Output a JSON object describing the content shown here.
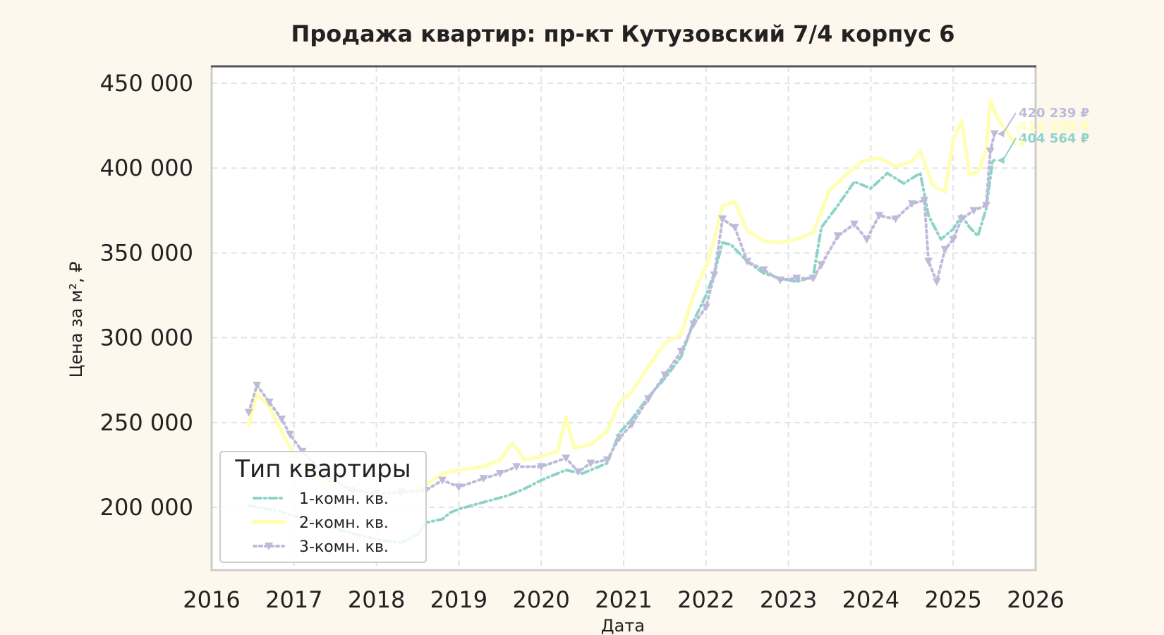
{
  "chart_data": {
    "type": "line",
    "title": "Продажа квартир: пр-кт Кутузовский 7/4 корпус 6",
    "xlabel": "Дата",
    "ylabel": "Цена за м², ₽",
    "xlim": [
      2016,
      2026
    ],
    "ylim": [
      163000,
      460000
    ],
    "x_ticks": [
      "2016",
      "2017",
      "2018",
      "2019",
      "2020",
      "2021",
      "2022",
      "2023",
      "2024",
      "2025",
      "2026"
    ],
    "y_ticks": [
      200000,
      250000,
      300000,
      350000,
      400000,
      450000
    ],
    "y_tick_labels": [
      "200 000",
      "250 000",
      "300 000",
      "350 000",
      "400 000",
      "450 000"
    ],
    "grid": true,
    "legend": {
      "title": "Тип квартиры",
      "position": "lower-left"
    },
    "series": [
      {
        "name": "1-комн. кв.",
        "color": "#8dd3c7",
        "style": "dashdot",
        "marker": "none",
        "end_label": "404 564 ₽",
        "points": [
          [
            2016.45,
            201000
          ],
          [
            2016.8,
            198000
          ],
          [
            2017.2,
            192000
          ],
          [
            2017.6,
            186000
          ],
          [
            2018.0,
            181000
          ],
          [
            2018.3,
            179000
          ],
          [
            2018.5,
            184000
          ],
          [
            2018.6,
            191000
          ],
          [
            2018.8,
            193000
          ],
          [
            2018.9,
            197000
          ],
          [
            2019.0,
            199000
          ],
          [
            2019.3,
            203000
          ],
          [
            2019.6,
            207000
          ],
          [
            2019.8,
            211000
          ],
          [
            2020.0,
            216000
          ],
          [
            2020.3,
            222000
          ],
          [
            2020.5,
            220000
          ],
          [
            2020.8,
            226000
          ],
          [
            2020.95,
            244000
          ],
          [
            2021.1,
            252000
          ],
          [
            2021.3,
            265000
          ],
          [
            2021.5,
            276000
          ],
          [
            2021.7,
            289000
          ],
          [
            2021.85,
            310000
          ],
          [
            2022.0,
            325000
          ],
          [
            2022.1,
            338000
          ],
          [
            2022.2,
            356000
          ],
          [
            2022.3,
            355000
          ],
          [
            2022.5,
            345000
          ],
          [
            2022.7,
            338000
          ],
          [
            2022.9,
            335000
          ],
          [
            2023.1,
            333000
          ],
          [
            2023.3,
            336000
          ],
          [
            2023.4,
            365000
          ],
          [
            2023.6,
            378000
          ],
          [
            2023.8,
            392000
          ],
          [
            2024.0,
            388000
          ],
          [
            2024.2,
            397000
          ],
          [
            2024.4,
            391000
          ],
          [
            2024.6,
            397000
          ],
          [
            2024.7,
            372000
          ],
          [
            2024.85,
            358000
          ],
          [
            2025.0,
            364000
          ],
          [
            2025.1,
            372000
          ],
          [
            2025.2,
            365000
          ],
          [
            2025.3,
            360000
          ],
          [
            2025.4,
            376000
          ],
          [
            2025.48,
            405000
          ],
          [
            2025.5,
            404564
          ]
        ]
      },
      {
        "name": "2-комн. кв.",
        "color": "#ffffb3",
        "style": "solid",
        "marker": "none",
        "end_label": "414 258 ₽",
        "points": [
          [
            2016.45,
            248000
          ],
          [
            2016.55,
            267000
          ],
          [
            2016.7,
            259000
          ],
          [
            2016.9,
            240000
          ],
          [
            2017.0,
            231000
          ],
          [
            2017.2,
            220000
          ],
          [
            2017.5,
            212000
          ],
          [
            2017.8,
            208000
          ],
          [
            2018.0,
            206000
          ],
          [
            2018.3,
            208000
          ],
          [
            2018.6,
            213000
          ],
          [
            2018.8,
            220000
          ],
          [
            2019.0,
            222000
          ],
          [
            2019.3,
            224000
          ],
          [
            2019.5,
            228000
          ],
          [
            2019.65,
            238000
          ],
          [
            2019.8,
            228000
          ],
          [
            2020.0,
            230000
          ],
          [
            2020.2,
            233000
          ],
          [
            2020.3,
            253000
          ],
          [
            2020.4,
            235000
          ],
          [
            2020.6,
            237000
          ],
          [
            2020.8,
            245000
          ],
          [
            2020.95,
            262000
          ],
          [
            2021.1,
            268000
          ],
          [
            2021.3,
            283000
          ],
          [
            2021.5,
            297000
          ],
          [
            2021.7,
            302000
          ],
          [
            2021.8,
            318000
          ],
          [
            2021.9,
            332000
          ],
          [
            2022.0,
            342000
          ],
          [
            2022.1,
            358000
          ],
          [
            2022.2,
            378000
          ],
          [
            2022.35,
            380000
          ],
          [
            2022.5,
            363000
          ],
          [
            2022.7,
            357000
          ],
          [
            2022.9,
            356000
          ],
          [
            2023.1,
            358000
          ],
          [
            2023.3,
            362000
          ],
          [
            2023.5,
            387000
          ],
          [
            2023.7,
            396000
          ],
          [
            2023.9,
            404000
          ],
          [
            2024.1,
            406000
          ],
          [
            2024.3,
            401000
          ],
          [
            2024.5,
            404000
          ],
          [
            2024.6,
            410000
          ],
          [
            2024.75,
            390000
          ],
          [
            2024.9,
            386000
          ],
          [
            2025.0,
            416000
          ],
          [
            2025.1,
            428000
          ],
          [
            2025.2,
            396000
          ],
          [
            2025.3,
            398000
          ],
          [
            2025.4,
            410000
          ],
          [
            2025.45,
            440000
          ],
          [
            2025.55,
            428000
          ],
          [
            2025.7,
            418000
          ],
          [
            2025.75,
            414258
          ]
        ]
      },
      {
        "name": "3-комн. кв.",
        "color": "#bebada",
        "style": "dotted",
        "marker": "triangle_down",
        "end_label": "420 239 ₽",
        "points": [
          [
            2016.45,
            256000
          ],
          [
            2016.55,
            272000
          ],
          [
            2016.7,
            262000
          ],
          [
            2016.85,
            252000
          ],
          [
            2016.95,
            243000
          ],
          [
            2017.1,
            233000
          ],
          [
            2017.4,
            218000
          ],
          [
            2017.7,
            210000
          ],
          [
            2018.0,
            208000
          ],
          [
            2018.3,
            209000
          ],
          [
            2018.6,
            210000
          ],
          [
            2018.8,
            216000
          ],
          [
            2019.0,
            212000
          ],
          [
            2019.3,
            217000
          ],
          [
            2019.5,
            220000
          ],
          [
            2019.7,
            224000
          ],
          [
            2020.0,
            224000
          ],
          [
            2020.3,
            229000
          ],
          [
            2020.45,
            221000
          ],
          [
            2020.6,
            226000
          ],
          [
            2020.8,
            228000
          ],
          [
            2020.95,
            241000
          ],
          [
            2021.1,
            249000
          ],
          [
            2021.3,
            264000
          ],
          [
            2021.5,
            278000
          ],
          [
            2021.7,
            292000
          ],
          [
            2021.85,
            308000
          ],
          [
            2022.0,
            318000
          ],
          [
            2022.1,
            337000
          ],
          [
            2022.2,
            370000
          ],
          [
            2022.35,
            365000
          ],
          [
            2022.5,
            345000
          ],
          [
            2022.7,
            340000
          ],
          [
            2022.9,
            334000
          ],
          [
            2023.1,
            335000
          ],
          [
            2023.3,
            335000
          ],
          [
            2023.4,
            343000
          ],
          [
            2023.6,
            360000
          ],
          [
            2023.8,
            367000
          ],
          [
            2023.95,
            358000
          ],
          [
            2024.1,
            372000
          ],
          [
            2024.3,
            370000
          ],
          [
            2024.5,
            379000
          ],
          [
            2024.65,
            381000
          ],
          [
            2024.7,
            345000
          ],
          [
            2024.8,
            333000
          ],
          [
            2024.9,
            352000
          ],
          [
            2025.0,
            358000
          ],
          [
            2025.1,
            370000
          ],
          [
            2025.25,
            375000
          ],
          [
            2025.4,
            378000
          ],
          [
            2025.45,
            410000
          ],
          [
            2025.5,
            420239
          ]
        ]
      }
    ]
  }
}
